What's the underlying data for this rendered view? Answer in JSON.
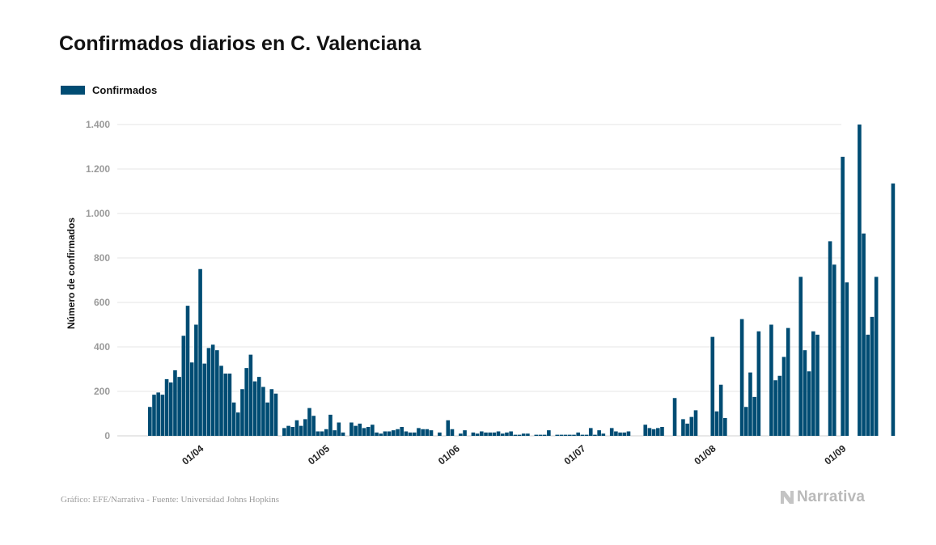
{
  "title": "Confirmados diarios en C. Valenciana",
  "footer": {
    "source": "Gráfico: EFE/Narrativa - Fuente: Universidad Johns Hopkins",
    "brand": "Narrativa",
    "brand_icon": "narrativa-n-logo-icon"
  },
  "colors": {
    "bar": "#004c73",
    "grid": "#e6e6e6",
    "tick": "#9a9a9a"
  },
  "chart_data": {
    "type": "bar",
    "legend": {
      "label": "Confirmados",
      "position": "top-left"
    },
    "ylabel": "Número de confirmados",
    "xlabel": "",
    "ylim": [
      0,
      1400
    ],
    "yticks": [
      0,
      200,
      400,
      600,
      800,
      1000,
      1200,
      1400
    ],
    "ytick_labels": [
      "0",
      "200",
      "400",
      "600",
      "800",
      "1.000",
      "1.200",
      "1.400"
    ],
    "grid": true,
    "xticks": [
      {
        "label": "01/04",
        "index": 11
      },
      {
        "label": "01/05",
        "index": 41
      },
      {
        "label": "01/06",
        "index": 72
      },
      {
        "label": "01/07",
        "index": 102
      },
      {
        "label": "01/08",
        "index": 133
      },
      {
        "label": "01/09",
        "index": 164
      }
    ],
    "series": [
      {
        "name": "Confirmados",
        "values": [
          130,
          185,
          195,
          185,
          255,
          240,
          295,
          265,
          450,
          585,
          330,
          500,
          750,
          325,
          395,
          410,
          385,
          315,
          280,
          280,
          150,
          105,
          210,
          305,
          365,
          245,
          265,
          220,
          150,
          210,
          190,
          0,
          35,
          45,
          40,
          70,
          45,
          75,
          125,
          90,
          20,
          20,
          30,
          95,
          25,
          60,
          15,
          0,
          60,
          45,
          55,
          35,
          40,
          50,
          15,
          10,
          20,
          20,
          25,
          30,
          40,
          20,
          15,
          15,
          35,
          30,
          30,
          25,
          0,
          15,
          0,
          70,
          30,
          0,
          10,
          25,
          0,
          15,
          10,
          20,
          15,
          15,
          15,
          20,
          10,
          15,
          20,
          5,
          5,
          10,
          10,
          0,
          5,
          5,
          5,
          25,
          0,
          5,
          5,
          5,
          5,
          5,
          15,
          5,
          5,
          35,
          5,
          25,
          10,
          0,
          35,
          20,
          15,
          15,
          20,
          0,
          0,
          0,
          50,
          35,
          30,
          35,
          40,
          0,
          0,
          170,
          0,
          75,
          55,
          85,
          115,
          0,
          0,
          0,
          445,
          110,
          230,
          80,
          0,
          0,
          0,
          525,
          130,
          285,
          175,
          470,
          0,
          0,
          500,
          250,
          270,
          355,
          485,
          0,
          0,
          715,
          385,
          290,
          470,
          455,
          0,
          0,
          875,
          770,
          0,
          1255,
          690,
          0,
          0,
          1400,
          910,
          455,
          535,
          715,
          0,
          0,
          0,
          1135
        ]
      }
    ]
  }
}
